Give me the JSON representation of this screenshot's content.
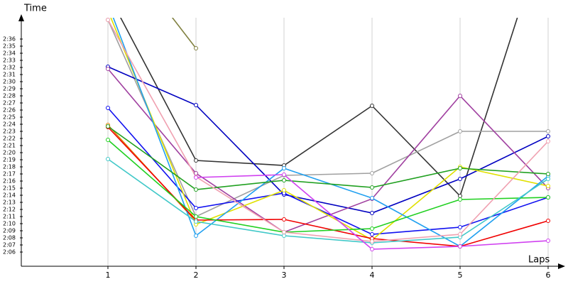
{
  "chart_data": {
    "type": "line",
    "y_label": "Time",
    "x_label": "Laps",
    "x": [
      1,
      2,
      3,
      4,
      5,
      6
    ],
    "xlim": [
      0.016,
      6.15
    ],
    "xticks": [
      1,
      2,
      3,
      4,
      5,
      6
    ],
    "ylim": [
      124,
      159
    ],
    "yticks": [
      {
        "value": 126,
        "label": "2:06"
      },
      {
        "value": 127,
        "label": "2:07"
      },
      {
        "value": 128,
        "label": "2:08"
      },
      {
        "value": 129,
        "label": "2:09"
      },
      {
        "value": 130,
        "label": "2:10"
      },
      {
        "value": 131,
        "label": "2:11"
      },
      {
        "value": 132,
        "label": "2:12"
      },
      {
        "value": 133,
        "label": "2:13"
      },
      {
        "value": 134,
        "label": "2:14"
      },
      {
        "value": 135,
        "label": "2:15"
      },
      {
        "value": 136,
        "label": "2:16"
      },
      {
        "value": 137,
        "label": "2:17"
      },
      {
        "value": 138,
        "label": "2:18"
      },
      {
        "value": 139,
        "label": "2:19"
      },
      {
        "value": 140,
        "label": "2:20"
      },
      {
        "value": 141,
        "label": "2:21"
      },
      {
        "value": 142,
        "label": "2:22"
      },
      {
        "value": 143,
        "label": "2:23"
      },
      {
        "value": 144,
        "label": "2:24"
      },
      {
        "value": 145,
        "label": "2:25"
      },
      {
        "value": 146,
        "label": "2:26"
      },
      {
        "value": 147,
        "label": "2:27"
      },
      {
        "value": 148,
        "label": "2:28"
      },
      {
        "value": 149,
        "label": "2:29"
      },
      {
        "value": 150,
        "label": "2:30"
      },
      {
        "value": 151,
        "label": "2:31"
      },
      {
        "value": 152,
        "label": "2:32"
      },
      {
        "value": 153,
        "label": "2:33"
      },
      {
        "value": 154,
        "label": "2:34"
      },
      {
        "value": 155,
        "label": "2:35"
      },
      {
        "value": 156,
        "label": "2:36"
      }
    ],
    "grid": true,
    "series": [
      {
        "color": "#333333",
        "values": [
          162.4,
          138.9,
          138.2,
          146.6,
          133.9,
          172.5
        ]
      },
      {
        "color": "#808040",
        "values": [
          170.8,
          154.7,
          null,
          null,
          null,
          null
        ]
      },
      {
        "color": "#a0a0a0",
        "values": [
          158.7,
          131.0,
          136.8,
          137.1,
          143.0,
          143.0
        ]
      },
      {
        "color": "#0000c0",
        "values": [
          152.1,
          146.7,
          134.1,
          131.5,
          136.3,
          142.3
        ]
      },
      {
        "color": "#a040a0",
        "values": [
          151.8,
          137.1,
          128.8,
          133.5,
          148.0,
          135.0
        ]
      },
      {
        "color": "#1010f0",
        "values": [
          146.3,
          132.2,
          134.3,
          128.5,
          129.5,
          133.7
        ]
      },
      {
        "color": "#e08000",
        "values": [
          143.9,
          130.3,
          null,
          null,
          null,
          null
        ]
      },
      {
        "color": "#e0e000",
        "values": [
          160.0,
          129.9,
          134.7,
          127.7,
          138.0,
          135.3
        ]
      },
      {
        "color": "#20a0f0",
        "values": [
          161.0,
          128.3,
          137.8,
          133.6,
          126.8,
          136.7
        ]
      },
      {
        "color": "#f00000",
        "values": [
          143.6,
          130.5,
          130.6,
          127.9,
          126.8,
          130.4
        ]
      },
      {
        "color": "#20a020",
        "values": [
          143.7,
          134.8,
          136.1,
          135.1,
          137.8,
          137.0
        ]
      },
      {
        "color": "#20d020",
        "values": [
          141.8,
          131.0,
          128.8,
          129.3,
          133.4,
          133.7
        ]
      },
      {
        "color": "#40c8c8",
        "values": [
          139.1,
          130.3,
          128.3,
          127.3,
          128.1,
          136.3
        ]
      },
      {
        "color": "#f0a0b0",
        "values": [
          158.7,
          136.6,
          128.8,
          127.5,
          128.5,
          141.6
        ]
      },
      {
        "color": "#d040f0",
        "values": [
          null,
          136.5,
          136.9,
          126.4,
          126.8,
          127.6
        ]
      }
    ]
  }
}
